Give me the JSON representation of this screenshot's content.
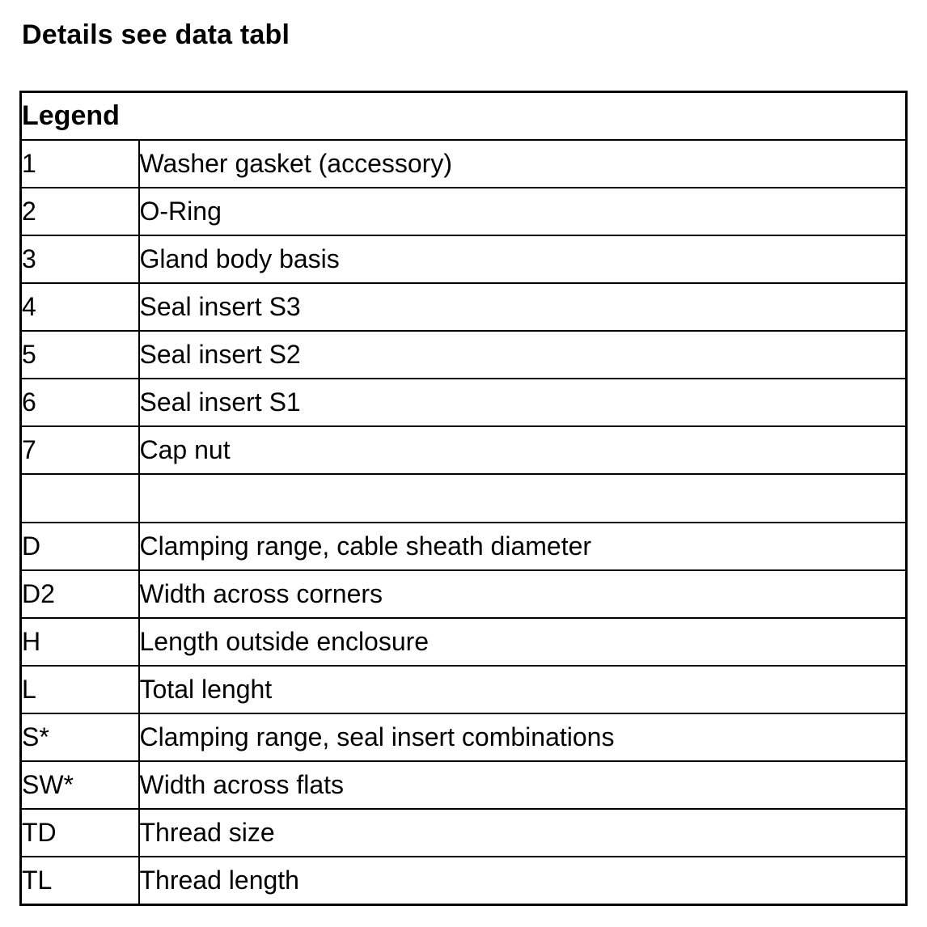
{
  "page": {
    "title": "Details see data tabl"
  },
  "legend_table": {
    "header": "Legend",
    "rows": [
      {
        "key": "1",
        "description": "Washer gasket (accessory)"
      },
      {
        "key": "2",
        "description": "O-Ring"
      },
      {
        "key": "3",
        "description": "Gland body basis"
      },
      {
        "key": "4",
        "description": "Seal insert S3"
      },
      {
        "key": "5",
        "description": "Seal insert S2"
      },
      {
        "key": "6",
        "description": "Seal insert S1"
      },
      {
        "key": "7",
        "description": "Cap nut"
      },
      {
        "key": "",
        "description": ""
      },
      {
        "key": "D",
        "description": "Clamping range, cable sheath diameter"
      },
      {
        "key": "D2",
        "description": "Width across corners"
      },
      {
        "key": "H",
        "description": "Length outside enclosure"
      },
      {
        "key": "L",
        "description": "Total lenght"
      },
      {
        "key": "S*",
        "description": "Clamping range, seal insert combinations"
      },
      {
        "key": "SW*",
        "description": "Width across flats"
      },
      {
        "key": "TD",
        "description": "Thread size"
      },
      {
        "key": "TL",
        "description": "Thread length"
      }
    ]
  },
  "colors": {
    "text": "#000000",
    "border": "#000000",
    "background": "#ffffff"
  }
}
